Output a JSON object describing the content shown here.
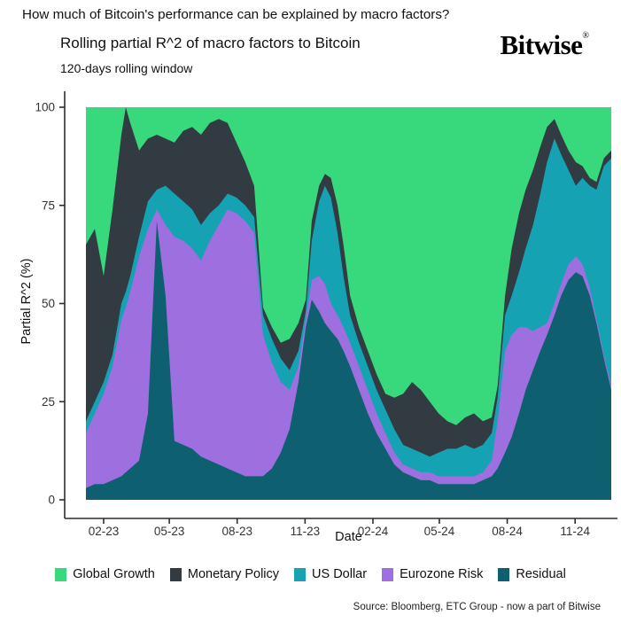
{
  "header": {
    "question_title": "How much of Bitcoin's performance can be explained by macro factors?",
    "chart_title": "Rolling partial R^2 of macro factors to Bitcoin",
    "chart_subtitle": "120-days rolling window",
    "brand": "Bitwise",
    "brand_registered_mark": "®"
  },
  "footer": {
    "source_note": "Source: Bloomberg, ETC Group - now a part of Bitwise"
  },
  "colors": {
    "global_growth": "#38d97c",
    "monetary_policy": "#323b41",
    "us_dollar": "#15a3b3",
    "eurozone_risk": "#9d6fdf",
    "residual": "#0e6070",
    "axis": "#2d2d2d",
    "tick_label": "#333333"
  },
  "chart_data": {
    "type": "area",
    "stacked": true,
    "title": "Rolling partial R^2 of macro factors to Bitcoin",
    "subtitle": "120-days rolling window",
    "xlabel": "Date",
    "ylabel": "Partial R^2 (%)",
    "unit": "percent",
    "ylim": [
      0,
      100
    ],
    "yticks": [
      0,
      25,
      50,
      75,
      100
    ],
    "xticks": [
      {
        "label": "02-23",
        "date": "2023-02-01"
      },
      {
        "label": "05-23",
        "date": "2023-05-01"
      },
      {
        "label": "08-23",
        "date": "2023-08-01"
      },
      {
        "label": "11-23",
        "date": "2023-11-01"
      },
      {
        "label": "02-24",
        "date": "2024-02-01"
      },
      {
        "label": "05-24",
        "date": "2024-05-01"
      },
      {
        "label": "08-24",
        "date": "2024-08-01"
      },
      {
        "label": "11-24",
        "date": "2024-11-01"
      }
    ],
    "x_dates": [
      "2023-01-08",
      "2023-01-20",
      "2023-02-01",
      "2023-02-13",
      "2023-02-25",
      "2023-03-03",
      "2023-03-09",
      "2023-03-21",
      "2023-04-02",
      "2023-04-14",
      "2023-04-26",
      "2023-05-08",
      "2023-05-20",
      "2023-06-01",
      "2023-06-13",
      "2023-06-25",
      "2023-07-07",
      "2023-07-19",
      "2023-07-31",
      "2023-08-12",
      "2023-08-24",
      "2023-09-05",
      "2023-09-17",
      "2023-09-29",
      "2023-10-11",
      "2023-10-23",
      "2023-11-02",
      "2023-11-10",
      "2023-11-20",
      "2023-11-28",
      "2023-12-06",
      "2023-12-15",
      "2023-12-23",
      "2024-01-01",
      "2024-01-13",
      "2024-01-25",
      "2024-02-06",
      "2024-02-18",
      "2024-03-01",
      "2024-03-13",
      "2024-03-25",
      "2024-04-06",
      "2024-04-18",
      "2024-04-30",
      "2024-05-12",
      "2024-05-24",
      "2024-06-05",
      "2024-06-17",
      "2024-06-29",
      "2024-07-11",
      "2024-07-19",
      "2024-07-29",
      "2024-08-07",
      "2024-08-17",
      "2024-08-26",
      "2024-09-05",
      "2024-09-15",
      "2024-09-24",
      "2024-10-04",
      "2024-10-13",
      "2024-10-23",
      "2024-11-02",
      "2024-11-11",
      "2024-11-21",
      "2024-11-30",
      "2024-12-10",
      "2024-12-20"
    ],
    "series": [
      {
        "name": "Residual",
        "color": "#0e6070",
        "values": [
          3,
          4,
          4,
          5,
          6,
          7,
          8,
          10,
          22,
          71,
          52,
          15,
          14,
          13,
          11,
          10,
          9,
          8,
          7,
          6,
          6,
          6,
          8,
          12,
          18,
          30,
          44,
          51,
          48,
          45,
          43,
          41,
          38,
          34,
          28,
          22,
          17,
          13,
          9,
          7,
          6,
          5,
          5,
          4,
          4,
          4,
          4,
          4,
          5,
          6,
          8,
          12,
          16,
          22,
          28,
          33,
          38,
          42,
          47,
          52,
          56,
          58,
          57,
          52,
          45,
          36,
          28
        ]
      },
      {
        "name": "Eurozone Risk",
        "color": "#9d6fdf",
        "values": [
          14,
          18,
          23,
          29,
          40,
          42,
          45,
          52,
          47,
          3,
          18,
          52,
          52,
          51,
          50,
          56,
          61,
          66,
          66,
          65,
          62,
          36,
          27,
          18,
          10,
          4,
          2,
          5,
          9,
          10,
          7,
          6,
          6,
          6,
          6,
          6,
          5,
          4,
          3,
          2,
          2,
          2,
          2,
          2,
          2,
          2,
          2,
          2,
          2,
          4,
          12,
          26,
          26,
          22,
          16,
          10,
          6,
          3,
          3,
          3,
          4,
          4,
          3,
          2,
          1,
          1,
          1
        ]
      },
      {
        "name": "US Dollar",
        "color": "#15a3b3",
        "values": [
          3,
          3,
          3,
          3,
          4,
          4,
          4,
          5,
          7,
          5,
          10,
          11,
          10,
          10,
          9,
          7,
          5,
          4,
          4,
          4,
          4,
          5,
          6,
          6,
          5,
          4,
          2,
          10,
          19,
          25,
          27,
          21,
          13,
          7,
          6,
          6,
          6,
          6,
          6,
          5,
          5,
          5,
          4,
          6,
          7,
          7,
          8,
          7,
          7,
          7,
          6,
          9,
          10,
          14,
          20,
          27,
          34,
          41,
          42,
          33,
          24,
          18,
          22,
          26,
          33,
          48,
          58
        ]
      },
      {
        "name": "Monetary Policy",
        "color": "#323b41",
        "values": [
          45,
          44,
          27,
          37,
          43,
          47,
          39,
          22,
          16,
          14,
          12,
          13,
          18,
          21,
          23,
          23,
          22,
          18,
          14,
          11,
          8,
          2,
          3,
          4,
          8,
          7,
          3,
          5,
          4,
          3,
          5,
          7,
          8,
          5,
          4,
          4,
          4,
          4,
          8,
          13,
          17,
          16,
          14,
          10,
          7,
          6,
          7,
          9,
          6,
          4,
          3,
          5,
          12,
          15,
          15,
          14,
          12,
          9,
          5,
          5,
          5,
          6,
          3,
          2,
          2,
          2,
          2
        ]
      },
      {
        "name": "Global Growth",
        "color": "#38d97c",
        "values": [
          35,
          31,
          43,
          26,
          7,
          0,
          4,
          11,
          8,
          7,
          8,
          9,
          6,
          5,
          7,
          4,
          3,
          4,
          9,
          14,
          20,
          51,
          56,
          60,
          59,
          55,
          49,
          29,
          20,
          17,
          18,
          25,
          35,
          48,
          56,
          62,
          68,
          73,
          74,
          73,
          70,
          72,
          75,
          78,
          80,
          81,
          79,
          78,
          80,
          79,
          71,
          48,
          36,
          27,
          21,
          16,
          10,
          5,
          3,
          7,
          11,
          14,
          15,
          18,
          19,
          13,
          11
        ]
      }
    ],
    "stack_order_bottom_to_top": [
      "Residual",
      "Eurozone Risk",
      "US Dollar",
      "Monetary Policy",
      "Global Growth"
    ],
    "legend": {
      "position": "bottom",
      "items": [
        {
          "label": "Global Growth",
          "color": "#38d97c"
        },
        {
          "label": "Monetary Policy",
          "color": "#323b41"
        },
        {
          "label": "US Dollar",
          "color": "#15a3b3"
        },
        {
          "label": "Eurozone Risk",
          "color": "#9d6fdf"
        },
        {
          "label": "Residual",
          "color": "#0e6070"
        }
      ]
    },
    "grid": false
  }
}
